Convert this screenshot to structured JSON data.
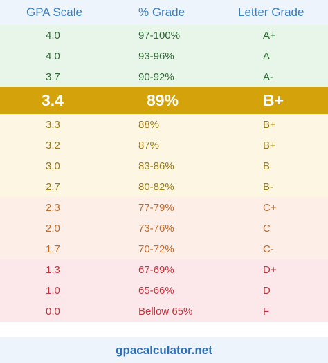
{
  "header": {
    "col_gpa": "GPA Scale",
    "col_percent": "% Grade",
    "col_letter": "Letter Grade"
  },
  "rows": [
    {
      "gpa": "4.0",
      "percent": "97-100%",
      "letter": "A+",
      "bg": "#e8f6e9",
      "color": "#2e6b33"
    },
    {
      "gpa": "4.0",
      "percent": "93-96%",
      "letter": "A",
      "bg": "#e8f6e9",
      "color": "#2e6b33"
    },
    {
      "gpa": "3.7",
      "percent": "90-92%",
      "letter": "A-",
      "bg": "#e8f6e9",
      "color": "#2e6b33"
    },
    {
      "gpa": "3.4",
      "percent": "89%",
      "letter": "B+",
      "bg": "#d4a20a",
      "color": "#ffffff",
      "highlight": true
    },
    {
      "gpa": "3.3",
      "percent": "88%",
      "letter": "B+",
      "bg": "#fdf6e2",
      "color": "#9a7a12"
    },
    {
      "gpa": "3.2",
      "percent": "87%",
      "letter": "B+",
      "bg": "#fdf6e2",
      "color": "#9a7a12"
    },
    {
      "gpa": "3.0",
      "percent": "83-86%",
      "letter": "B",
      "bg": "#fdf6e2",
      "color": "#9a7a12"
    },
    {
      "gpa": "2.7",
      "percent": "80-82%",
      "letter": "B-",
      "bg": "#fdf6e2",
      "color": "#9a7a12"
    },
    {
      "gpa": "2.3",
      "percent": "77-79%",
      "letter": "C+",
      "bg": "#fdeee7",
      "color": "#c26a2a"
    },
    {
      "gpa": "2.0",
      "percent": "73-76%",
      "letter": "C",
      "bg": "#fdeee7",
      "color": "#c26a2a"
    },
    {
      "gpa": "1.7",
      "percent": "70-72%",
      "letter": "C-",
      "bg": "#fdeee7",
      "color": "#c26a2a"
    },
    {
      "gpa": "1.3",
      "percent": "67-69%",
      "letter": "D+",
      "bg": "#fce8ea",
      "color": "#c8323a"
    },
    {
      "gpa": "1.0",
      "percent": "65-66%",
      "letter": "D",
      "bg": "#fce8ea",
      "color": "#c8323a"
    },
    {
      "gpa": "0.0",
      "percent": "Bellow 65%",
      "letter": "F",
      "bg": "#fce8ea",
      "color": "#c8323a"
    }
  ],
  "footer": {
    "site": "gpacalculator.net"
  }
}
